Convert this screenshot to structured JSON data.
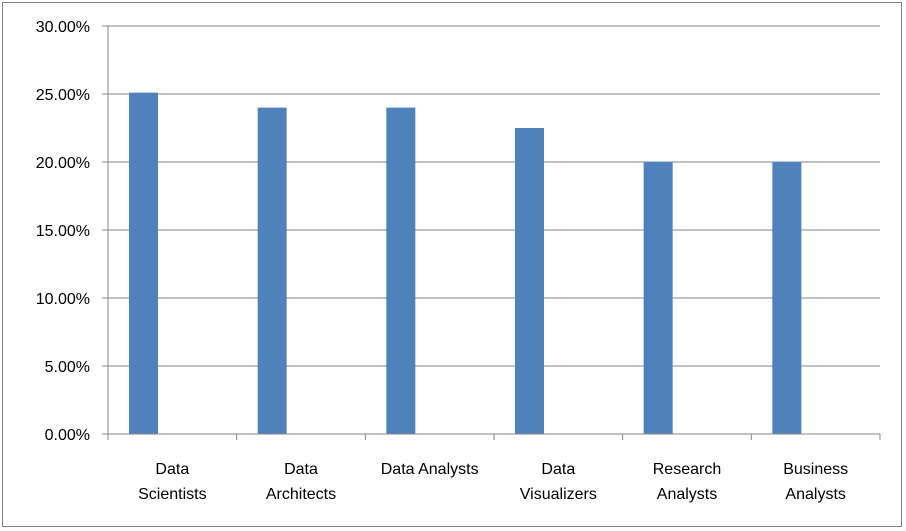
{
  "chart_data": {
    "type": "bar",
    "categories": [
      [
        "Data",
        "Scientists"
      ],
      [
        "Data",
        "Architects"
      ],
      [
        "Data Analysts"
      ],
      [
        "Data",
        "Visualizers"
      ],
      [
        "Research",
        "Analysts"
      ],
      [
        "Business",
        "Analysts"
      ]
    ],
    "values": [
      25.1,
      24.0,
      24.0,
      22.5,
      20.0,
      20.0
    ],
    "value_unit": "percent",
    "ylim": [
      0,
      30
    ],
    "yticks": [
      0,
      5,
      10,
      15,
      20,
      25,
      30
    ],
    "ytick_labels": [
      "0.00%",
      "5.00%",
      "10.00%",
      "15.00%",
      "20.00%",
      "25.00%",
      "30.00%"
    ],
    "grid": true,
    "legend": false,
    "title": "",
    "xlabel": "",
    "ylabel": "",
    "colors": {
      "bar": "#4f81bd",
      "grid": "#868686",
      "axis": "#868686",
      "border": "#7f7f7f"
    }
  }
}
